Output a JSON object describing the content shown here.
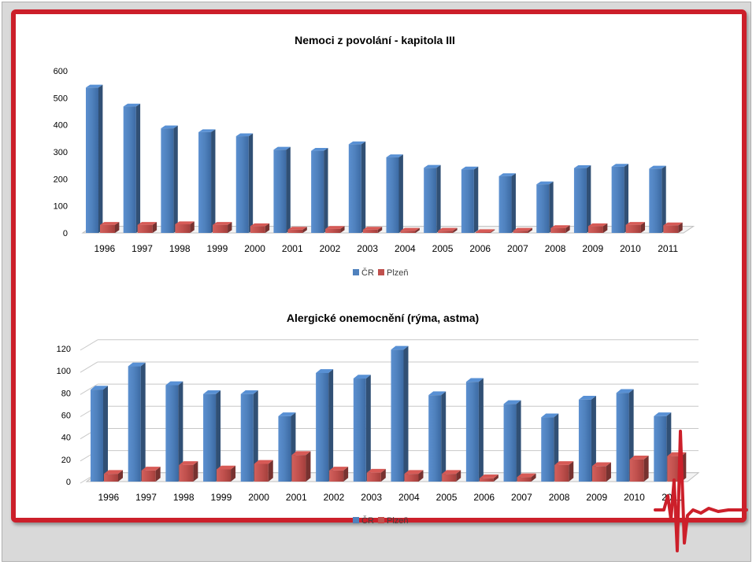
{
  "colors": {
    "cr": "#4f81bd",
    "plzen": "#c0504d",
    "frame": "#cc1f2a",
    "background_gray": "#d9d9d9"
  },
  "chart_data": [
    {
      "type": "bar",
      "title": "Nemoci z povolání - kapitola III",
      "categories": [
        "1996",
        "1997",
        "1998",
        "1999",
        "2000",
        "2001",
        "2002",
        "2003",
        "2004",
        "2005",
        "2006",
        "2007",
        "2008",
        "2009",
        "2010",
        "2011"
      ],
      "series": [
        {
          "name": "ČR",
          "values": [
            538,
            468,
            387,
            373,
            358,
            308,
            304,
            328,
            280,
            241,
            235,
            210,
            180,
            240,
            245,
            238
          ]
        },
        {
          "name": "Plzeň",
          "values": [
            30,
            30,
            32,
            30,
            25,
            12,
            15,
            12,
            8,
            8,
            3,
            8,
            18,
            25,
            30,
            28
          ]
        }
      ],
      "yticks": [
        0,
        100,
        200,
        300,
        400,
        500,
        600
      ],
      "ylim": [
        0,
        600
      ],
      "legend": "bottom",
      "grid": false
    },
    {
      "type": "bar",
      "title": "Alergické onemocnění (rýma, astma)",
      "categories": [
        "1996",
        "1997",
        "1998",
        "1999",
        "2000",
        "2001",
        "2002",
        "2003",
        "2004",
        "2005",
        "2006",
        "2007",
        "2008",
        "2009",
        "2010",
        "2011"
      ],
      "series": [
        {
          "name": "ČR",
          "values": [
            83,
            104,
            87,
            79,
            79,
            59,
            98,
            93,
            119,
            78,
            90,
            70,
            58,
            74,
            80,
            59
          ]
        },
        {
          "name": "Plzeň",
          "values": [
            7,
            10,
            15,
            11,
            16,
            24,
            10,
            8,
            7,
            7,
            3,
            4,
            15,
            14,
            20,
            23
          ]
        }
      ],
      "yticks": [
        0,
        20,
        40,
        60,
        80,
        100,
        120
      ],
      "ylim": [
        0,
        120
      ],
      "legend": "bottom",
      "grid": true
    }
  ]
}
